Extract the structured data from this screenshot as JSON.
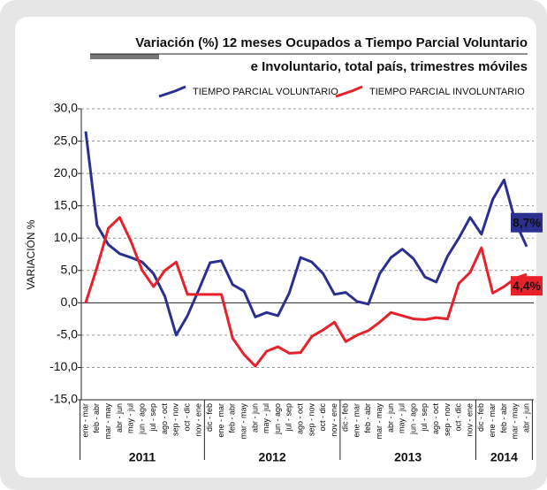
{
  "chart_data": {
    "type": "line",
    "title": [
      "Variación (%) 12 meses Ocupados a Tiempo Parcial Voluntario",
      "e Involuntario, total país, trimestres móviles"
    ],
    "y_label": "VARIACIÓN %",
    "groups": [
      {
        "label": "2011",
        "categories": [
          "ene - mar",
          "feb - abr",
          "mar - may",
          "abr - jun",
          "may - jul",
          "jun - ago",
          "jul - sep",
          "ago - oct",
          "sep - nov",
          "oct - dic",
          "nov - ene"
        ]
      },
      {
        "label": "2012",
        "categories": [
          "dic - feb",
          "ene - mar",
          "feb - abr",
          "mar - may",
          "abr - jun",
          "may - jul",
          "jun - ago",
          "jul - sep",
          "ago - oct",
          "sep - nov",
          "oct - dic",
          "nov - ene"
        ]
      },
      {
        "label": "2013",
        "categories": [
          "dic - feb",
          "ene - mar",
          "feb - abr",
          "mar - may",
          "abr - jun",
          "may - jul",
          "jun - ago",
          "jul - sep",
          "ago - oct",
          "sep - nov",
          "oct - dic",
          "nov - ene"
        ]
      },
      {
        "label": "2014",
        "categories": [
          "dic - feb",
          "ene - mar",
          "feb - abr",
          "mar - may",
          "abr - jun"
        ]
      }
    ],
    "series": [
      {
        "name": "TIEMPO PARCIAL VOLUNTARIO",
        "color": "#2b2f8f",
        "values": [
          26.5,
          12,
          9,
          7.6,
          7,
          6.3,
          4.5,
          1,
          -5,
          -2,
          2,
          6.2,
          6.5,
          2.8,
          1.8,
          -2.2,
          -1.5,
          -2,
          1.5,
          7,
          6.3,
          4.5,
          1.3,
          1.6,
          0.2,
          -0.2,
          4.5,
          7,
          8.3,
          6.8,
          4,
          3.2,
          7.2,
          10,
          13.2,
          10.6,
          16,
          19,
          12.5,
          8.7
        ],
        "end_label": "8,7%"
      },
      {
        "name": "TIEMPO PARCIAL INVOLUNTARIO",
        "color": "#e8202a",
        "values": [
          0,
          5.5,
          11.5,
          13.2,
          9.5,
          5,
          2.5,
          5,
          6.3,
          1.3,
          1.3,
          1.3,
          1.3,
          -5.5,
          -8,
          -9.8,
          -7.5,
          -6.8,
          -7.8,
          -7.7,
          -5.2,
          -4.2,
          -3,
          -6,
          -5,
          -4.3,
          -3,
          -1.5,
          -2,
          -2.5,
          -2.6,
          -2.3,
          -2.5,
          3,
          4.7,
          8.5,
          1.5,
          2.5,
          3.8,
          4.4
        ],
        "end_label": "4,4%"
      }
    ],
    "ylim": [
      -15,
      30
    ],
    "yticks": [
      {
        "value": -15,
        "label": "-15,0"
      },
      {
        "value": -10,
        "label": "-10,0"
      },
      {
        "value": -5,
        "label": "-5,0"
      },
      {
        "value": 0,
        "label": "0,0"
      },
      {
        "value": 5,
        "label": "5,0"
      },
      {
        "value": 10,
        "label": "10,0"
      },
      {
        "value": 15,
        "label": "15,0"
      },
      {
        "value": 20,
        "label": "20,0"
      },
      {
        "value": 25,
        "label": "25,0"
      },
      {
        "value": 30,
        "label": "30,0"
      }
    ],
    "grid": true
  }
}
